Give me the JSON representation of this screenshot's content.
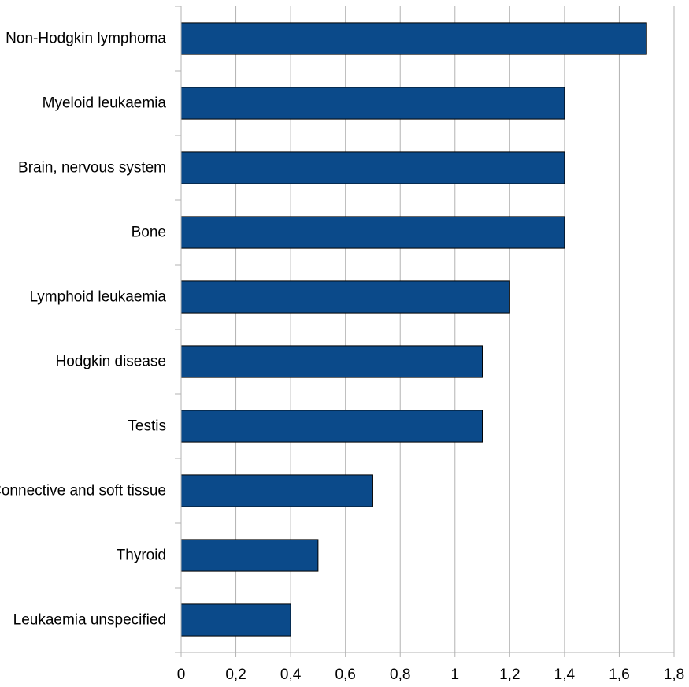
{
  "chart_data": {
    "type": "bar",
    "orientation": "horizontal",
    "title": "",
    "xlabel": "",
    "ylabel": "",
    "categories": [
      "Non-Hodgkin lymphoma",
      "Myeloid leukaemia",
      "Brain, nervous system",
      "Bone",
      "Lymphoid leukaemia",
      "Hodgkin disease",
      "Testis",
      "Connective and soft tissue",
      "Thyroid",
      "Leukaemia unspecified"
    ],
    "values": [
      1.7,
      1.4,
      1.4,
      1.4,
      1.2,
      1.1,
      1.1,
      0.7,
      0.5,
      0.4
    ],
    "xlim": [
      0,
      1.8
    ],
    "x_ticks": [
      0,
      0.2,
      0.4,
      0.6,
      0.8,
      1,
      1.2,
      1.4,
      1.6,
      1.8
    ],
    "x_tick_labels": [
      "0",
      "0,2",
      "0,4",
      "0,6",
      "0,8",
      "1",
      "1,2",
      "1,4",
      "1,6",
      "1,8"
    ],
    "grid": "vertical",
    "legend": "none",
    "bar_color": "#0b4a8a",
    "bar_edge_color": "#000000",
    "grid_color": "#b3b3b3"
  }
}
